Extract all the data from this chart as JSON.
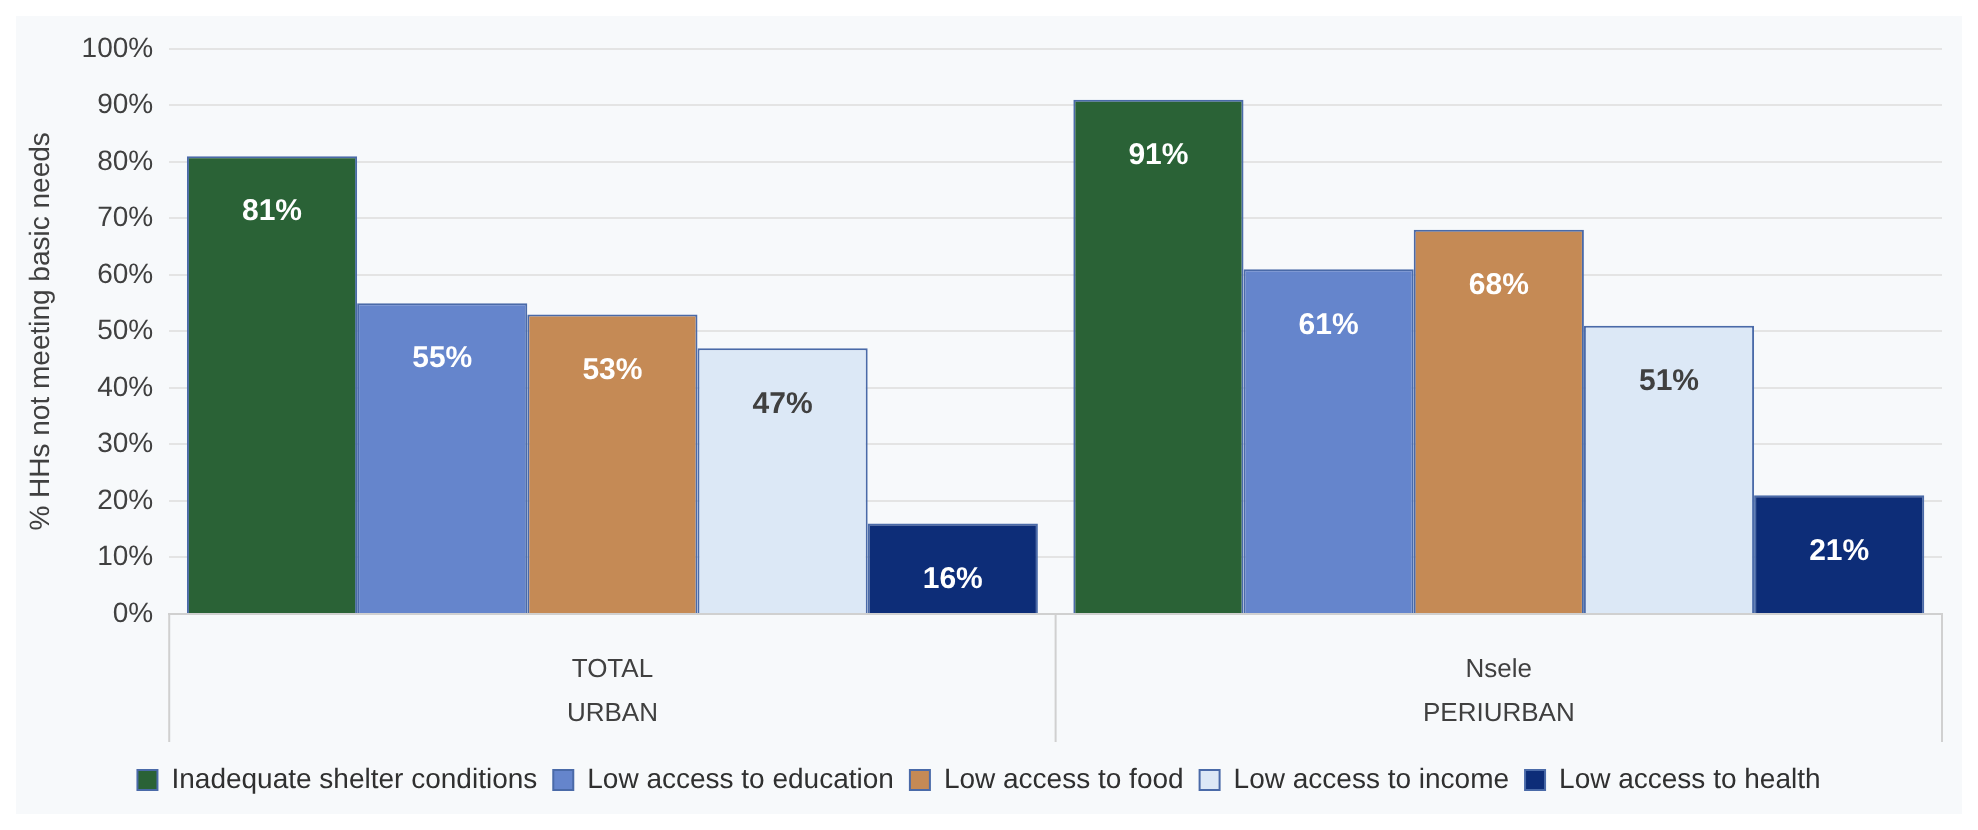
{
  "chart_data": {
    "type": "bar",
    "ylabel": "% HHs not meeting basic needs",
    "categories": [
      "TOTAL",
      "Nsele"
    ],
    "annotations": [
      "URBAN",
      "PERIURBAN"
    ],
    "series": [
      {
        "name": "Inadequate shelter conditions",
        "color": "#2a6236",
        "values": [
          81,
          91
        ],
        "value_labels": [
          "81%",
          "91%"
        ]
      },
      {
        "name": "Low access to education",
        "color": "#6585cc",
        "values": [
          55,
          61
        ],
        "value_labels": [
          "55%",
          "61%"
        ]
      },
      {
        "name": "Low access to food",
        "color": "#c58a55",
        "values": [
          53,
          68
        ],
        "value_labels": [
          "53%",
          "68%"
        ]
      },
      {
        "name": "Low access to income",
        "color": "#dce8f6",
        "values": [
          47,
          51
        ],
        "value_labels": [
          "47%",
          "51%"
        ]
      },
      {
        "name": "Low access to health",
        "color": "#0d2d78",
        "values": [
          16,
          21
        ],
        "value_labels": [
          "16%",
          "21%"
        ]
      }
    ],
    "ylim": [
      0,
      100
    ],
    "yticks": [
      {
        "value": 0,
        "label": "0%"
      },
      {
        "value": 10,
        "label": "10%"
      },
      {
        "value": 20,
        "label": "20%"
      },
      {
        "value": 30,
        "label": "30%"
      },
      {
        "value": 40,
        "label": "40%"
      },
      {
        "value": 50,
        "label": "50%"
      },
      {
        "value": 60,
        "label": "60%"
      },
      {
        "value": 70,
        "label": "70%"
      },
      {
        "value": 80,
        "label": "80%"
      },
      {
        "value": 90,
        "label": "90%"
      },
      {
        "value": 100,
        "label": "100%"
      }
    ],
    "grid": "y",
    "legend": "bottom"
  }
}
